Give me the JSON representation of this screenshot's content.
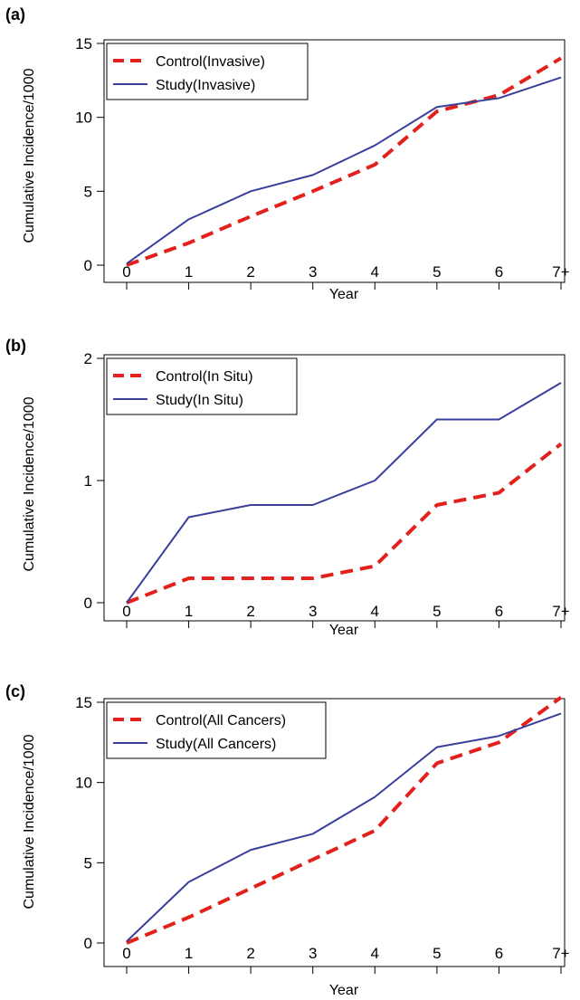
{
  "chart_data": [
    {
      "type": "line",
      "panel_label": "(a)",
      "title": "",
      "xlabel": "Year",
      "ylabel": "Cumulative Incidence/1000",
      "categories": [
        "0",
        "1",
        "2",
        "3",
        "4",
        "5",
        "6",
        "7+"
      ],
      "ylim": [
        0,
        15
      ],
      "yticks": [
        0,
        5,
        10,
        15
      ],
      "grid": false,
      "legend_position": "top-left",
      "series": [
        {
          "name": "Control(Invasive)",
          "color": "#e3211c",
          "dash": "dashed",
          "values": [
            0,
            1.5,
            3.3,
            5.0,
            6.8,
            10.4,
            11.5,
            14.0
          ]
        },
        {
          "name": "Study(Invasive)",
          "color": "#3a3f9c",
          "dash": "solid",
          "values": [
            0.1,
            3.1,
            5.0,
            6.1,
            8.1,
            10.7,
            11.3,
            12.7
          ]
        }
      ]
    },
    {
      "type": "line",
      "panel_label": "(b)",
      "title": "",
      "xlabel": "Year",
      "ylabel": "Cumulative Incidence/1000",
      "categories": [
        "0",
        "1",
        "2",
        "3",
        "4",
        "5",
        "6",
        "7+"
      ],
      "ylim": [
        0,
        2
      ],
      "yticks": [
        0,
        1,
        2
      ],
      "grid": false,
      "legend_position": "top-left",
      "series": [
        {
          "name": "Control(In Situ)",
          "color": "#e3211c",
          "dash": "dashed",
          "values": [
            0,
            0.2,
            0.2,
            0.2,
            0.3,
            0.8,
            0.9,
            1.3
          ]
        },
        {
          "name": "Study(In Situ)",
          "color": "#3a3f9c",
          "dash": "solid",
          "values": [
            0,
            0.7,
            0.8,
            0.8,
            1.0,
            1.5,
            1.5,
            1.8
          ]
        }
      ]
    },
    {
      "type": "line",
      "panel_label": "(c)",
      "title": "",
      "xlabel": "Year",
      "ylabel": "Cumulative Incidence/1000",
      "categories": [
        "0",
        "1",
        "2",
        "3",
        "4",
        "5",
        "6",
        "7+"
      ],
      "ylim": [
        0,
        15
      ],
      "yticks": [
        0,
        5,
        10,
        15
      ],
      "grid": false,
      "legend_position": "top-left",
      "series": [
        {
          "name": "Control(All Cancers)",
          "color": "#e3211c",
          "dash": "dashed",
          "values": [
            0,
            1.6,
            3.4,
            5.2,
            7.0,
            11.2,
            12.5,
            15.3
          ]
        },
        {
          "name": "Study(All Cancers)",
          "color": "#3a3f9c",
          "dash": "solid",
          "values": [
            0.1,
            3.8,
            5.8,
            6.8,
            9.1,
            12.2,
            12.9,
            14.3
          ]
        }
      ]
    }
  ]
}
